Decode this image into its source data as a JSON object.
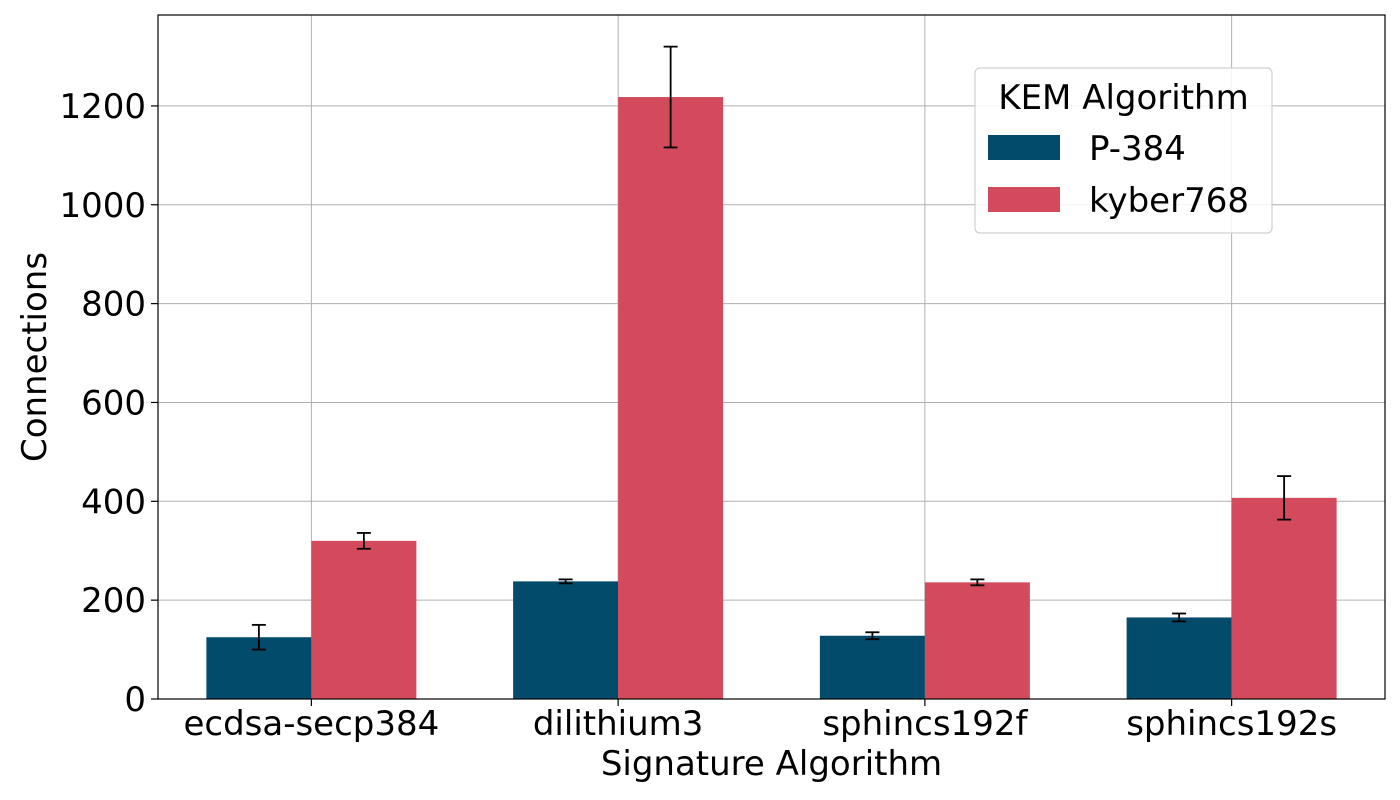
{
  "chart_data": {
    "type": "bar",
    "categories": [
      "ecdsa-secp384",
      "dilithium3",
      "sphincs192f",
      "sphincs192s"
    ],
    "series": [
      {
        "name": "P-384",
        "color": "#024b6a",
        "values": [
          125,
          238,
          128,
          165
        ],
        "errors": [
          25,
          4,
          7,
          8
        ]
      },
      {
        "name": "kyber768",
        "color": "#d34a5c",
        "values": [
          320,
          1218,
          236,
          407
        ],
        "errors": [
          16,
          102,
          6,
          44
        ]
      }
    ],
    "title": "",
    "xlabel": "Signature Algorithm",
    "ylabel": "Connections",
    "ylim": [
      0,
      1384
    ],
    "yticks": [
      0,
      200,
      400,
      600,
      800,
      1000,
      1200
    ],
    "grid": true,
    "legend": {
      "title": "KEM Algorithm",
      "placement": "top-right"
    }
  }
}
